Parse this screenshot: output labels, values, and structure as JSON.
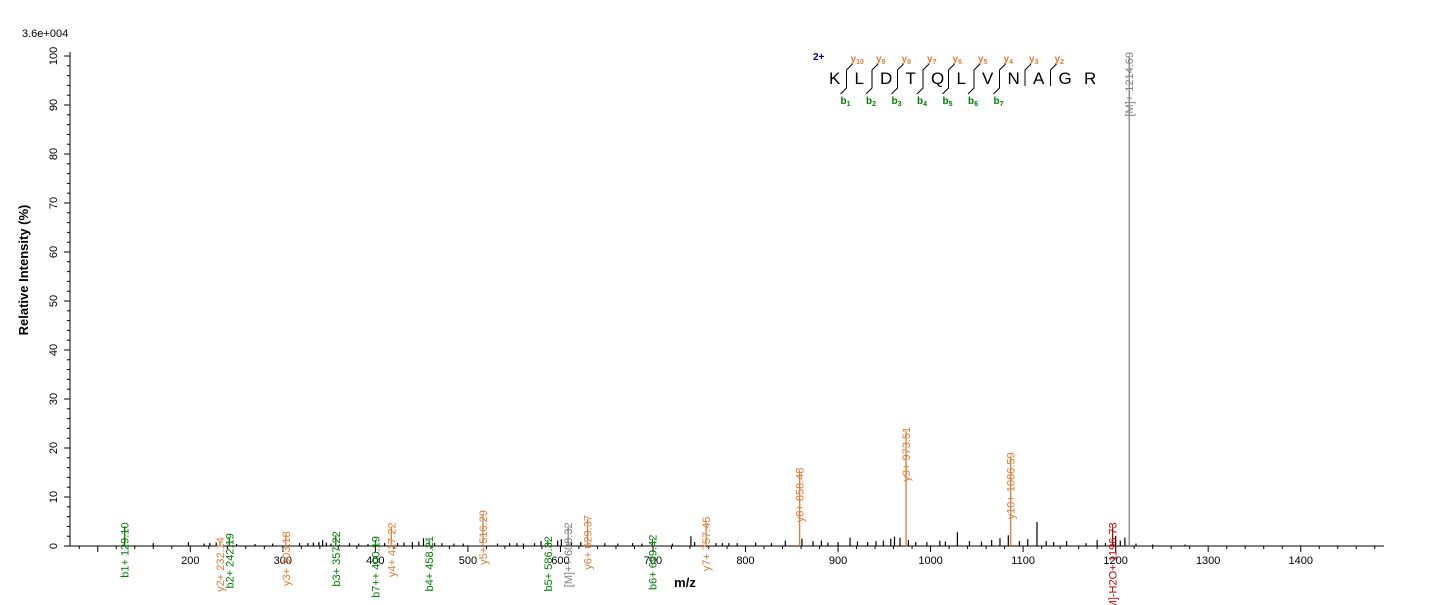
{
  "chart_data": {
    "type": "bar",
    "title": "",
    "scale_label": "3.6e+004",
    "xlabel": "m/z",
    "ylabel": "Relative   Intensity (%)",
    "xlim": [
      70,
      1490
    ],
    "ylim": [
      0,
      100
    ],
    "xticks_major": [
      200,
      300,
      400,
      500,
      600,
      700,
      800,
      900,
      1000,
      1100,
      1200,
      1300,
      1400
    ],
    "yticks_major": [
      0,
      10,
      20,
      30,
      40,
      50,
      60,
      70,
      80,
      90,
      100
    ],
    "colors": {
      "b": "#008000",
      "y": "#e07b39",
      "precursor": "#808080",
      "precursor_loss": "#c00000",
      "unassigned": "#000000",
      "charge": "#00008b"
    },
    "annotated_peaks": [
      {
        "mz": 129.1,
        "intensity": 4.0,
        "label": "b1+ 129.10",
        "ion": "b"
      },
      {
        "mz": 232.14,
        "intensity": 1.0,
        "label": "y2+ 232.14",
        "ion": "y"
      },
      {
        "mz": 242.19,
        "intensity": 1.8,
        "label": "b2+ 242.19",
        "ion": "b"
      },
      {
        "mz": 303.18,
        "intensity": 2.2,
        "label": "y3+ 303.18",
        "ion": "y"
      },
      {
        "mz": 357.22,
        "intensity": 2.2,
        "label": "b3+ 357.22",
        "ion": "b"
      },
      {
        "mz": 400.19,
        "intensity": 1.2,
        "label": "b7++ 400.19",
        "ion": "b"
      },
      {
        "mz": 417.22,
        "intensity": 4.0,
        "label": "y4+ 417.22",
        "ion": "y"
      },
      {
        "mz": 458.21,
        "intensity": 1.2,
        "label": "b4+ 458.21",
        "ion": "b"
      },
      {
        "mz": 516.29,
        "intensity": 6.5,
        "label": "y5+ 516.29",
        "ion": "y"
      },
      {
        "mz": 586.32,
        "intensity": 1.2,
        "label": "b5+ 586.32",
        "ion": "b"
      },
      {
        "mz": 608.32,
        "intensity": 4.0,
        "label": "[M]++ 608.32",
        "ion": "precursor"
      },
      {
        "mz": 629.37,
        "intensity": 5.5,
        "label": "y6+ 629.37",
        "ion": "y"
      },
      {
        "mz": 699.42,
        "intensity": 1.5,
        "label": "b6+ 699.42",
        "ion": "b"
      },
      {
        "mz": 757.45,
        "intensity": 5.2,
        "label": "y7+ 757.45",
        "ion": "y"
      },
      {
        "mz": 858.48,
        "intensity": 15.2,
        "label": "y8+ 858.48",
        "ion": "y"
      },
      {
        "mz": 973.51,
        "intensity": 23.5,
        "label": "y9+ 973.51",
        "ion": "y"
      },
      {
        "mz": 1086.59,
        "intensity": 18.3,
        "label": "y10+ 1086.59",
        "ion": "y"
      },
      {
        "mz": 1196.73,
        "intensity": 4.0,
        "label": "[M]-H2O+ 1196.73",
        "ion": "precursor_loss"
      },
      {
        "mz": 1214.69,
        "intensity": 100,
        "label": "[M]+ 1214.69",
        "ion": "precursor"
      }
    ],
    "unassigned_peaks": [
      [
        160,
        0.6
      ],
      [
        198,
        0.8
      ],
      [
        215,
        0.5
      ],
      [
        221,
        0.6
      ],
      [
        228,
        0.7
      ],
      [
        250,
        0.4
      ],
      [
        270,
        0.4
      ],
      [
        289,
        0.5
      ],
      [
        318,
        0.6
      ],
      [
        327,
        0.6
      ],
      [
        333,
        0.7
      ],
      [
        339,
        0.8
      ],
      [
        343,
        1.2
      ],
      [
        347,
        0.7
      ],
      [
        352,
        0.5
      ],
      [
        372,
        0.6
      ],
      [
        382,
        0.5
      ],
      [
        392,
        0.4
      ],
      [
        410,
        0.6
      ],
      [
        424,
        0.6
      ],
      [
        431,
        0.7
      ],
      [
        440,
        0.8
      ],
      [
        447,
        0.9
      ],
      [
        452,
        1.6
      ],
      [
        464,
        0.6
      ],
      [
        472,
        0.6
      ],
      [
        485,
        0.5
      ],
      [
        495,
        0.5
      ],
      [
        532,
        0.5
      ],
      [
        545,
        0.6
      ],
      [
        553,
        0.6
      ],
      [
        560,
        0.5
      ],
      [
        572,
        0.6
      ],
      [
        579,
        1.0
      ],
      [
        597,
        1.1
      ],
      [
        601,
        1.4
      ],
      [
        612,
        0.7
      ],
      [
        622,
        0.8
      ],
      [
        648,
        0.6
      ],
      [
        662,
        0.5
      ],
      [
        678,
        0.6
      ],
      [
        688,
        0.5
      ],
      [
        721,
        0.5
      ],
      [
        741,
        2.0
      ],
      [
        745,
        0.8
      ],
      [
        768,
        0.6
      ],
      [
        775,
        0.6
      ],
      [
        782,
        0.6
      ],
      [
        791,
        0.6
      ],
      [
        811,
        0.7
      ],
      [
        828,
        0.6
      ],
      [
        843,
        1.1
      ],
      [
        861,
        1.5
      ],
      [
        873,
        1.0
      ],
      [
        882,
        1.1
      ],
      [
        889,
        0.7
      ],
      [
        900,
        0.8
      ],
      [
        913,
        1.7
      ],
      [
        921,
        0.9
      ],
      [
        932,
        0.8
      ],
      [
        941,
        1.0
      ],
      [
        949,
        1.1
      ],
      [
        957,
        1.5
      ],
      [
        961,
        1.9
      ],
      [
        967,
        1.7
      ],
      [
        976,
        1.2
      ],
      [
        984,
        0.8
      ],
      [
        996,
        0.8
      ],
      [
        1010,
        1.1
      ],
      [
        1016,
        0.9
      ],
      [
        1029,
        2.8
      ],
      [
        1042,
        1.0
      ],
      [
        1055,
        0.9
      ],
      [
        1066,
        1.2
      ],
      [
        1075,
        1.6
      ],
      [
        1084,
        2.2
      ],
      [
        1096,
        1.0
      ],
      [
        1105,
        1.4
      ],
      [
        1115,
        4.9
      ],
      [
        1125,
        1.0
      ],
      [
        1133,
        0.8
      ],
      [
        1147,
        1.0
      ],
      [
        1168,
        0.6
      ],
      [
        1180,
        1.2
      ],
      [
        1189,
        0.6
      ],
      [
        1200,
        2.0
      ],
      [
        1205,
        1.1
      ],
      [
        1210,
        1.7
      ],
      [
        1222,
        0.5
      ],
      [
        1240,
        0.3
      ],
      [
        1275,
        0.3
      ]
    ],
    "sequence": {
      "charge": "2+",
      "residues": [
        "K",
        "L",
        "D",
        "T",
        "Q",
        "L",
        "V",
        "N",
        "A",
        "G",
        "R"
      ],
      "y_ions": [
        {
          "label": "y",
          "sub": "10",
          "after": 0
        },
        {
          "label": "y",
          "sub": "9",
          "after": 1
        },
        {
          "label": "y",
          "sub": "8",
          "after": 2
        },
        {
          "label": "y",
          "sub": "7",
          "after": 3
        },
        {
          "label": "y",
          "sub": "6",
          "after": 4
        },
        {
          "label": "y",
          "sub": "5",
          "after": 5
        },
        {
          "label": "y",
          "sub": "4",
          "after": 6
        },
        {
          "label": "y",
          "sub": "3",
          "after": 7
        },
        {
          "label": "y",
          "sub": "2",
          "after": 8
        }
      ],
      "b_ions": [
        {
          "label": "b",
          "sub": "1",
          "after": 0
        },
        {
          "label": "b",
          "sub": "2",
          "after": 1
        },
        {
          "label": "b",
          "sub": "3",
          "after": 2
        },
        {
          "label": "b",
          "sub": "4",
          "after": 3
        },
        {
          "label": "b",
          "sub": "5",
          "after": 4
        },
        {
          "label": "b",
          "sub": "6",
          "after": 5
        },
        {
          "label": "b",
          "sub": "7",
          "after": 6
        }
      ]
    }
  }
}
